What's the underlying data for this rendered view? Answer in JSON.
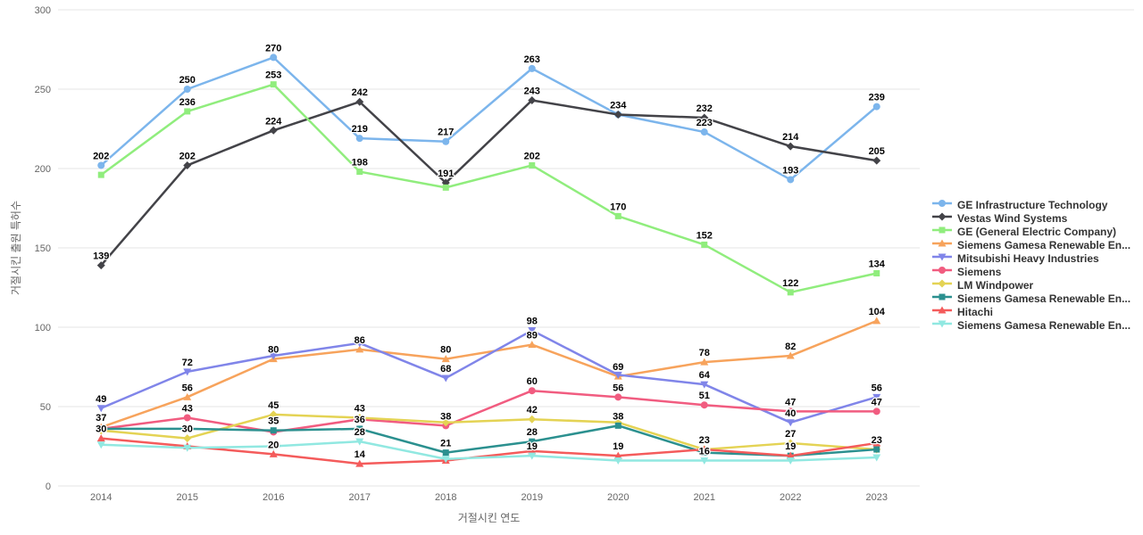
{
  "chart_data": {
    "type": "line",
    "title": "",
    "xlabel": "거절시킨 연도",
    "ylabel": "거절시킨 출원 특허수",
    "x_categories": [
      "2014",
      "2015",
      "2016",
      "2017",
      "2018",
      "2019",
      "2020",
      "2021",
      "2022",
      "2023"
    ],
    "yticks": [
      0,
      50,
      100,
      150,
      200,
      250,
      300
    ],
    "ylim": [
      0,
      300
    ],
    "grid": true,
    "legend_position": "right",
    "grid_color": "#e6e6e6",
    "tick_color": "#666666",
    "label_color": "#000000",
    "legend_text_color": "#333333",
    "series": [
      {
        "name": "GE Infrastructure Technology",
        "color": "#7cb5ec",
        "marker": "circle",
        "values": [
          202,
          250,
          270,
          219,
          217,
          263,
          234,
          223,
          193,
          239
        ],
        "labels": [
          202,
          250,
          270,
          219,
          217,
          263,
          null,
          223,
          193,
          239
        ]
      },
      {
        "name": "Vestas Wind Systems",
        "color": "#434348",
        "marker": "diamond",
        "values": [
          139,
          202,
          224,
          242,
          191,
          243,
          234,
          232,
          214,
          205
        ],
        "labels": [
          139,
          202,
          224,
          242,
          191,
          243,
          234,
          232,
          214,
          205
        ]
      },
      {
        "name": "GE (General Electric Company)",
        "color": "#90ed7d",
        "marker": "square",
        "values": [
          196,
          236,
          253,
          198,
          188,
          202,
          170,
          152,
          122,
          134
        ],
        "labels": [
          null,
          236,
          253,
          198,
          null,
          202,
          170,
          152,
          122,
          134
        ]
      },
      {
        "name": "Siemens Gamesa Renewable En...",
        "color": "#f7a35c",
        "marker": "triangle",
        "values": [
          37,
          56,
          80,
          86,
          80,
          89,
          69,
          78,
          82,
          104
        ],
        "labels": [
          37,
          56,
          80,
          86,
          80,
          89,
          69,
          78,
          82,
          104
        ]
      },
      {
        "name": "Mitsubishi Heavy Industries",
        "color": "#8085e9",
        "marker": "triangle-down",
        "values": [
          49,
          72,
          82,
          90,
          68,
          98,
          70,
          64,
          40,
          56
        ],
        "labels": [
          49,
          72,
          null,
          null,
          68,
          98,
          null,
          64,
          40,
          56
        ]
      },
      {
        "name": "Siemens",
        "color": "#f15c80",
        "marker": "circle",
        "values": [
          36,
          43,
          34,
          42,
          38,
          60,
          56,
          51,
          47,
          47
        ],
        "labels": [
          null,
          43,
          null,
          null,
          38,
          60,
          56,
          51,
          47,
          47
        ]
      },
      {
        "name": "LM Windpower",
        "color": "#e4d354",
        "marker": "diamond",
        "values": [
          35,
          30,
          45,
          43,
          40,
          42,
          40,
          23,
          27,
          23
        ],
        "labels": [
          null,
          30,
          45,
          43,
          null,
          42,
          null,
          null,
          27,
          null
        ]
      },
      {
        "name": "Siemens Gamesa Renewable En...",
        "color": "#2b908f",
        "marker": "square",
        "values": [
          36,
          36,
          35,
          36,
          21,
          28,
          38,
          21,
          19,
          23
        ],
        "labels": [
          null,
          null,
          35,
          36,
          21,
          28,
          38,
          null,
          null,
          23
        ]
      },
      {
        "name": "Hitachi",
        "color": "#f45b5b",
        "marker": "triangle",
        "values": [
          30,
          25,
          20,
          14,
          16,
          22,
          19,
          23,
          19,
          27
        ],
        "labels": [
          30,
          null,
          20,
          14,
          null,
          null,
          19,
          23,
          19,
          null
        ]
      },
      {
        "name": "Siemens Gamesa Renewable En...",
        "color": "#91e8e1",
        "marker": "triangle-down",
        "values": [
          26,
          24,
          25,
          28,
          17,
          19,
          16,
          16,
          16,
          18
        ],
        "labels": [
          null,
          null,
          null,
          28,
          null,
          19,
          null,
          16,
          null,
          null
        ]
      }
    ]
  }
}
